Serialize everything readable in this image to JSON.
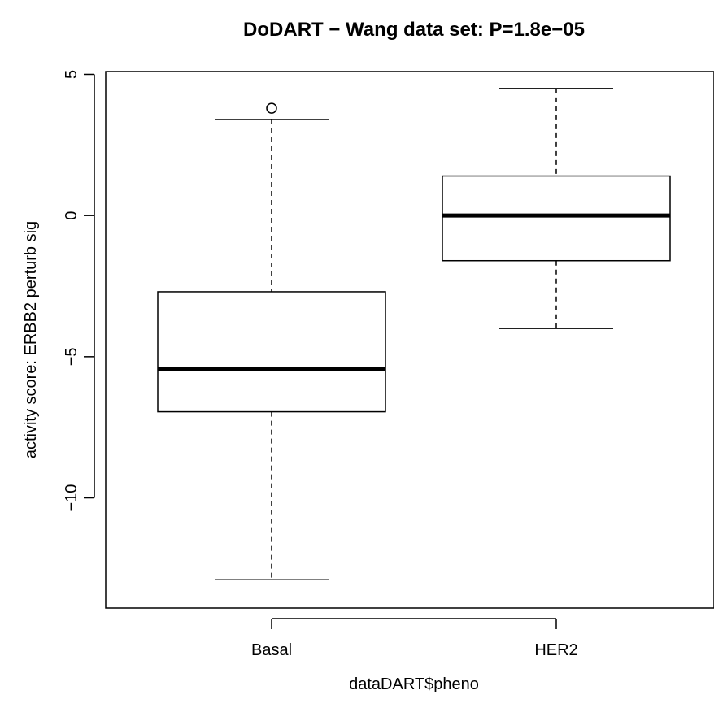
{
  "chart_data": {
    "type": "boxplot",
    "title": "DoDART − Wang data set: P=1.8e−05",
    "xlabel": "dataDART$pheno",
    "ylabel": "activity score: ERBB2 perturb sig",
    "ylim": [
      -13.9,
      5.1
    ],
    "yticks": [
      -10,
      -5,
      0,
      5
    ],
    "ytick_labels": [
      "−10",
      "−5",
      "0",
      "5"
    ],
    "grid": false,
    "categories": [
      "Basal",
      "HER2"
    ],
    "boxes": [
      {
        "name": "Basal",
        "whisker_low": -12.9,
        "q1": -6.95,
        "median": -5.45,
        "q3": -2.7,
        "whisker_high": 3.4,
        "outliers": [
          3.8
        ]
      },
      {
        "name": "HER2",
        "whisker_low": -4.0,
        "q1": -1.6,
        "median": 0.0,
        "q3": 1.4,
        "whisker_high": 4.5,
        "outliers": []
      }
    ]
  }
}
